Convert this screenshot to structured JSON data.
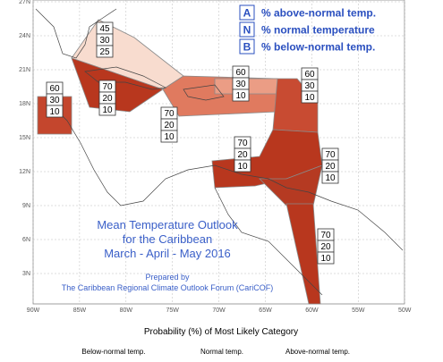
{
  "map": {
    "lat_labels": [
      "27N",
      "24N",
      "21N",
      "18N",
      "15N",
      "12N",
      "9N",
      "6N",
      "3N"
    ],
    "lon_labels": [
      "90W",
      "85W",
      "80W",
      "75W",
      "70W",
      "65W",
      "60W",
      "55W",
      "50W"
    ],
    "legend": [
      {
        "key": "A",
        "text": "% above-normal temp."
      },
      {
        "key": "N",
        "text": "% normal temperature"
      },
      {
        "key": "B",
        "text": "% below-normal temp."
      }
    ],
    "title_lines": [
      "Mean Temperature Outlook",
      "for the Caribbean",
      "March - April - May 2016"
    ],
    "prepared_by": "Prepared by",
    "forum": "The Caribbean Regional Climate Outlook Forum (CariCOF)",
    "regions": [
      {
        "above": 45,
        "normal": 30,
        "below": 25
      },
      {
        "above": 60,
        "normal": 30,
        "below": 10
      },
      {
        "above": 70,
        "normal": 20,
        "below": 10
      },
      {
        "above": 70,
        "normal": 20,
        "below": 10
      },
      {
        "above": 60,
        "normal": 30,
        "below": 10
      },
      {
        "above": 60,
        "normal": 30,
        "below": 10
      },
      {
        "above": 70,
        "normal": 20,
        "below": 10
      },
      {
        "above": 70,
        "normal": 20,
        "below": 10
      },
      {
        "above": 70,
        "normal": 20,
        "below": 10
      }
    ]
  },
  "colorbar": {
    "title": "Probability (%) of Most Likely Category",
    "labels": [
      "Below-normal temp.",
      "Normal temp.",
      "Above-normal temp."
    ]
  }
}
